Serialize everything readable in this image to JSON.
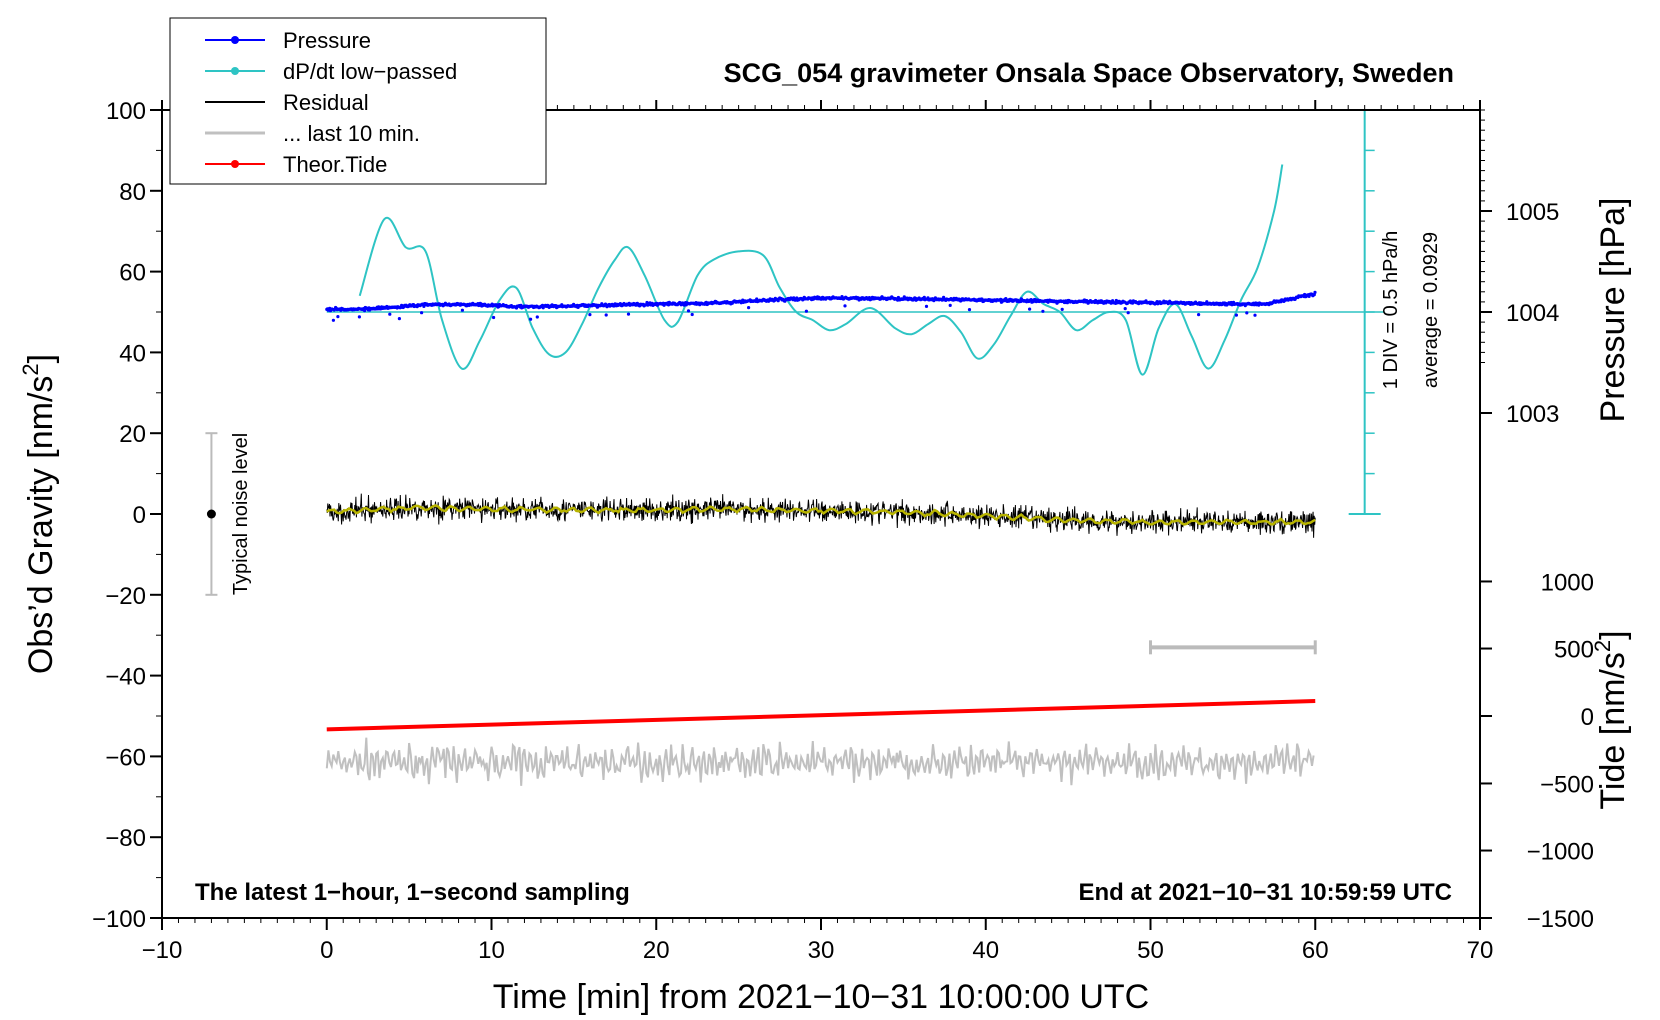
{
  "chart_data": {
    "type": "line",
    "title": "SCG_054 gravimeter Onsala Space Observatory, Sweden",
    "xlabel": "Time [min] from 2021−10−31 10:00:00 UTC",
    "ylabel": "Obs’d Gravity [nm/s",
    "ylabel_sup": "2",
    "ylabel_close": "]",
    "xlim": [
      -10,
      70
    ],
    "ylim": [
      -100,
      100
    ],
    "xticks": [
      -10,
      0,
      10,
      20,
      30,
      40,
      50,
      60,
      70
    ],
    "xtick_labels": [
      "−10",
      "0",
      "10",
      "20",
      "30",
      "40",
      "50",
      "60",
      "70"
    ],
    "yticks": [
      -100,
      -80,
      -60,
      -40,
      -20,
      0,
      20,
      40,
      60,
      80,
      100
    ],
    "ytick_labels": [
      "−100",
      "−80",
      "−60",
      "−40",
      "−20",
      "0",
      "20",
      "40",
      "60",
      "80",
      "100"
    ],
    "right_pressure_axis": {
      "label": "Pressure [hPa]",
      "ticks": [
        1003,
        1004,
        1005
      ],
      "tick_labels": [
        "1003",
        "1004",
        "1005"
      ],
      "gravity_equivalent": [
        25,
        50,
        75
      ]
    },
    "right_tide_axis": {
      "label": "Tide [nm/s",
      "label_sup": "2",
      "label_close": "]",
      "ticks": [
        1000,
        500,
        0,
        -500,
        -1000,
        -1500
      ],
      "tick_labels": [
        "1000",
        "500",
        "0",
        "−500",
        "−1000",
        "−1500"
      ],
      "gravity_equivalent": [
        -16.7,
        -33.3,
        -50,
        -66.7,
        -83.3,
        -100
      ]
    },
    "scale_bar": {
      "text1": "1 DIV = 0.5 hPa/h",
      "text2": "average = 0.0929",
      "x": 63,
      "y_bottom": 0,
      "y_top": 100,
      "baseline_y": 50
    },
    "noise_bar": {
      "label": "Typical noise level",
      "x": -7,
      "center": 0,
      "half_range": 20
    },
    "last10_bar": {
      "x_start": 50,
      "x_end": 60,
      "y": -33
    },
    "footer_left": "The latest 1−hour, 1−second sampling",
    "footer_right": "End at 2021−10−31 10:59:59 UTC",
    "legend": [
      {
        "label": "Pressure",
        "color": "#0000ff",
        "marker": true
      },
      {
        "label": "dP/dt low−passed",
        "color": "#2ec4c4",
        "marker": true
      },
      {
        "label": "Residual",
        "color": "#000000",
        "marker": false
      },
      {
        "label": "... last 10 min.",
        "color": "#c0c0c0",
        "marker": false
      },
      {
        "label": "Theor.Tide",
        "color": "#ff0000",
        "marker": true
      }
    ],
    "series": [
      {
        "name": "Pressure",
        "color": "#0000ff",
        "unit": "nm/s2 plot units",
        "x": [
          0,
          3,
          6,
          9,
          12,
          15,
          18,
          21,
          24,
          27,
          30,
          33,
          36,
          39,
          42,
          45,
          48,
          51,
          54,
          57,
          60
        ],
        "values": [
          50.7,
          50.8,
          51.8,
          51.9,
          51.3,
          51.5,
          51.8,
          52.0,
          52.3,
          53.0,
          53.4,
          53.4,
          53.2,
          53.0,
          52.8,
          52.6,
          52.5,
          52.3,
          52.0,
          52.0,
          54.5
        ]
      },
      {
        "name": "dP/dt low−passed",
        "color": "#2ec4c4",
        "x": [
          2,
          3.5,
          4.8,
          6,
          7,
          8.2,
          9.3,
          10.5,
          11.5,
          12.5,
          13.5,
          14.5,
          15.5,
          16.5,
          17.5,
          18.3,
          19.3,
          20.5,
          21.3,
          22.5,
          23.5,
          25,
          26.5,
          27.5,
          28.5,
          29.5,
          30.5,
          31.5,
          33,
          34.5,
          35.5,
          36.5,
          37.5,
          38.5,
          39.5,
          40.5,
          41.5,
          42.5,
          43.5,
          44.5,
          45.5,
          46.5,
          47.5,
          48.5,
          49.5,
          50.5,
          51.5,
          52.5,
          53.5,
          54.5,
          55.5,
          56.5,
          57.5,
          58
        ],
        "values": [
          54,
          73,
          66,
          65,
          48,
          36,
          43,
          53,
          56,
          46,
          39.5,
          40,
          47,
          56,
          63,
          66,
          59,
          48,
          47.5,
          59,
          63,
          65,
          64,
          56,
          50,
          48,
          45.5,
          47,
          51,
          46,
          44.5,
          47,
          49,
          45,
          38.5,
          42,
          49,
          55,
          52,
          50,
          45.5,
          48,
          50,
          48,
          34.5,
          46,
          52,
          44,
          36,
          43,
          53,
          61,
          75,
          86.5
        ]
      },
      {
        "name": "Residual",
        "color": "#000000",
        "x_start": 0,
        "x_end": 60,
        "noise": 5,
        "x": [
          0,
          5,
          10,
          15,
          20,
          25,
          30,
          35,
          40,
          45,
          50,
          55,
          60
        ],
        "values": [
          0.5,
          1.5,
          1.2,
          1.0,
          1.0,
          1.2,
          0.8,
          0.5,
          -0.5,
          -1.5,
          -2.0,
          -2.0,
          -2.0
        ]
      },
      {
        "name": "Smoothed residual",
        "color": "#b8b400",
        "x": [
          0,
          5,
          10,
          15,
          20,
          25,
          30,
          35,
          40,
          45,
          50,
          55,
          60
        ],
        "values": [
          0.5,
          1.5,
          1.2,
          1.0,
          1.0,
          1.2,
          0.8,
          0.5,
          -0.5,
          -1.5,
          -2.0,
          -2.0,
          -2.0
        ]
      },
      {
        "name": "... last 10 min.",
        "color": "#c0c0c0",
        "x_start": 0,
        "x_end": 60,
        "center": -61.5,
        "amp": 4.5
      },
      {
        "name": "Theor.Tide",
        "color": "#ff0000",
        "x": [
          0,
          60
        ],
        "values": [
          -53.3,
          -46.3
        ]
      }
    ]
  }
}
